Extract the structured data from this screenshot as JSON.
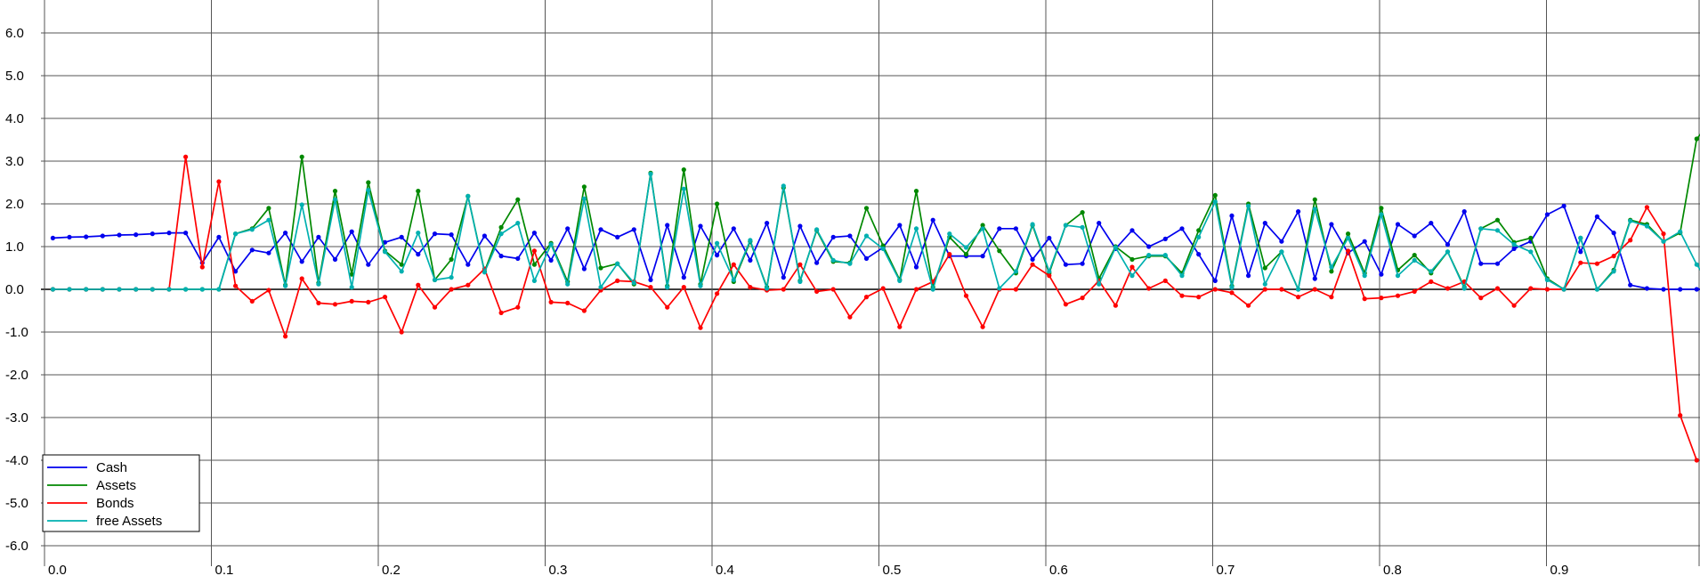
{
  "chart_data": {
    "type": "line",
    "title": "",
    "xlabel": "",
    "ylabel": "",
    "xlim": [
      -0.003,
      1.0
    ],
    "ylim": [
      -6.6,
      6.8
    ],
    "x_ticks": [
      0.0,
      0.1,
      0.2,
      0.3,
      0.4,
      0.5,
      0.6,
      0.7,
      0.8,
      0.9
    ],
    "x_tick_labels": [
      "0.0",
      "0.1",
      "0.2",
      "0.3",
      "0.4",
      "0.5",
      "0.6",
      "0.7",
      "0.8",
      "0.9"
    ],
    "y_ticks": [
      6,
      5,
      4,
      3,
      2,
      1,
      0,
      -1,
      -2,
      -3,
      -4,
      -5,
      -6
    ],
    "y_tick_labels": [
      "6.0",
      "5.0",
      "4.0",
      "3.0",
      "2.0",
      "1.0",
      "0.0",
      "-1.0",
      "-2.0",
      "-3.0",
      "-4.0",
      "-5.0",
      "-6.0"
    ],
    "grid": true,
    "legend_position": "bottom-left",
    "x_step": 0.01,
    "series": [
      {
        "name": "Cash",
        "color": "#0000ee",
        "values": [
          1.2,
          1.22,
          1.23,
          1.25,
          1.27,
          1.28,
          1.3,
          1.32,
          1.32,
          0.62,
          1.22,
          0.42,
          0.92,
          0.85,
          1.32,
          0.65,
          1.22,
          0.7,
          1.35,
          0.58,
          1.1,
          1.22,
          0.82,
          1.3,
          1.28,
          0.58,
          1.25,
          0.78,
          0.72,
          1.32,
          0.68,
          1.42,
          0.48,
          1.4,
          1.22,
          1.4,
          0.22,
          1.5,
          0.28,
          1.48,
          0.8,
          1.42,
          0.68,
          1.55,
          0.28,
          1.48,
          0.62,
          1.22,
          1.25,
          0.72,
          0.98,
          1.5,
          0.52,
          1.62,
          0.78,
          0.78,
          0.78,
          1.42,
          1.42,
          0.7,
          1.2,
          0.58,
          0.6,
          1.55,
          0.95,
          1.38,
          1.0,
          1.18,
          1.42,
          0.82,
          0.2,
          1.72,
          0.32,
          1.55,
          1.12,
          1.82,
          0.25,
          1.52,
          0.85,
          1.12,
          0.35,
          1.52,
          1.25,
          1.55,
          1.05,
          1.82,
          0.6,
          0.6,
          0.95,
          1.12,
          1.75,
          1.95,
          0.88,
          1.7,
          1.32,
          0.1,
          0.02,
          0.0,
          0.0,
          0.0,
          0.02
        ]
      },
      {
        "name": "Assets",
        "color": "#008800",
        "values": [
          0.0,
          0.0,
          0.0,
          0.0,
          0.0,
          0.0,
          0.0,
          0.0,
          0.0,
          0.0,
          0.0,
          1.3,
          1.42,
          1.9,
          0.1,
          3.1,
          0.15,
          2.3,
          0.35,
          2.5,
          0.9,
          0.58,
          2.3,
          0.22,
          0.7,
          2.18,
          0.42,
          1.45,
          2.1,
          0.58,
          1.08,
          0.18,
          2.4,
          0.5,
          0.6,
          0.12,
          2.72,
          0.08,
          2.8,
          0.12,
          2.0,
          0.18,
          1.12,
          0.05,
          2.38,
          0.2,
          1.38,
          0.65,
          0.62,
          1.9,
          1.02,
          0.22,
          2.3,
          0.05,
          1.22,
          0.82,
          1.5,
          0.9,
          0.38,
          1.5,
          0.38,
          1.5,
          1.8,
          0.25,
          1.0,
          0.7,
          0.78,
          0.78,
          0.38,
          1.38,
          2.2,
          0.08,
          2.0,
          0.5,
          0.88,
          0.0,
          2.1,
          0.42,
          1.3,
          0.38,
          1.9,
          0.45,
          0.8,
          0.38,
          0.88,
          0.05,
          1.42,
          1.62,
          1.1,
          1.2,
          0.25,
          0.0,
          1.2,
          0.0,
          0.45,
          1.62,
          1.52,
          1.12,
          1.32,
          3.52,
          4.0
        ]
      },
      {
        "name": "Bonds",
        "color": "#ff0000",
        "values": [
          0.0,
          0.0,
          0.0,
          0.0,
          0.0,
          0.0,
          0.0,
          0.0,
          3.1,
          0.52,
          2.52,
          0.08,
          -0.28,
          -0.02,
          -1.1,
          0.25,
          -0.32,
          -0.35,
          -0.28,
          -0.3,
          -0.18,
          -1.0,
          0.1,
          -0.42,
          0.0,
          0.1,
          0.48,
          -0.55,
          -0.42,
          0.9,
          -0.3,
          -0.32,
          -0.5,
          -0.02,
          0.2,
          0.18,
          0.05,
          -0.42,
          0.05,
          -0.9,
          -0.1,
          0.58,
          0.05,
          -0.02,
          0.0,
          0.58,
          -0.05,
          0.0,
          -0.65,
          -0.18,
          0.02,
          -0.88,
          0.0,
          0.18,
          0.82,
          -0.15,
          -0.88,
          0.0,
          0.0,
          0.58,
          0.32,
          -0.35,
          -0.2,
          0.2,
          -0.38,
          0.52,
          0.02,
          0.2,
          -0.15,
          -0.18,
          0.0,
          -0.08,
          -0.38,
          0.0,
          0.0,
          -0.18,
          0.0,
          -0.18,
          0.9,
          -0.22,
          -0.2,
          -0.15,
          -0.05,
          0.18,
          0.02,
          0.18,
          -0.2,
          0.02,
          -0.38,
          0.02,
          0.0,
          0.0,
          0.62,
          0.6,
          0.78,
          1.15,
          1.92,
          1.3,
          -2.95,
          -4.0
        ]
      },
      {
        "name": "free Assets",
        "color": "#00b0b0",
        "values": [
          0.0,
          0.0,
          0.0,
          0.0,
          0.0,
          0.0,
          0.0,
          0.0,
          0.0,
          0.0,
          0.0,
          1.3,
          1.4,
          1.62,
          0.08,
          1.98,
          0.12,
          2.1,
          0.05,
          2.32,
          0.88,
          0.42,
          1.32,
          0.22,
          0.28,
          2.18,
          0.4,
          1.3,
          1.55,
          0.2,
          1.05,
          0.12,
          2.12,
          0.05,
          0.6,
          0.15,
          2.7,
          0.05,
          2.35,
          0.08,
          1.08,
          0.22,
          1.15,
          0.02,
          2.42,
          0.18,
          1.4,
          0.68,
          0.6,
          1.25,
          0.95,
          0.2,
          1.42,
          0.0,
          1.3,
          0.98,
          1.42,
          0.02,
          0.42,
          1.52,
          0.42,
          1.5,
          1.45,
          0.12,
          0.98,
          0.32,
          0.8,
          0.8,
          0.32,
          1.22,
          2.05,
          0.05,
          1.95,
          0.12,
          0.88,
          0.0,
          1.88,
          0.52,
          1.2,
          0.32,
          1.75,
          0.32,
          0.68,
          0.42,
          0.88,
          0.02,
          1.42,
          1.38,
          1.05,
          0.88,
          0.22,
          0.0,
          1.2,
          0.0,
          0.42,
          1.6,
          1.48,
          1.12,
          1.35,
          0.58,
          0.02
        ]
      }
    ]
  }
}
